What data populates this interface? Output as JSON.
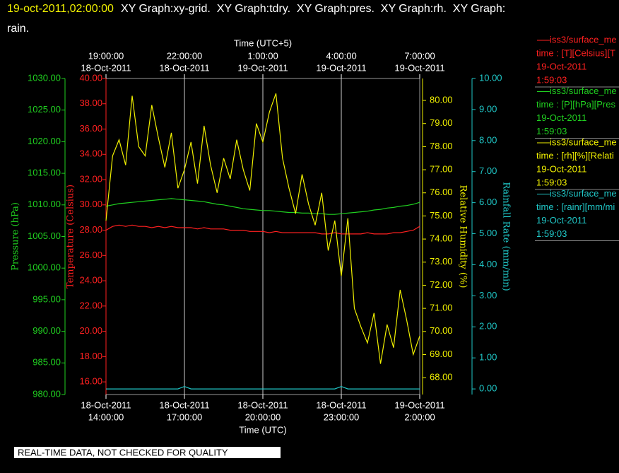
{
  "chart_data": {
    "type": "line",
    "title": {
      "time": "19-oct-2011,02:00:00",
      "line1": "XY Graph:xy-grid.  XY Graph:tdry.  XY Graph:pres.  XY Graph:rh.  XY Graph:",
      "line2": "rain."
    },
    "xlabel": "Time (UTC)",
    "x2label": "Time (UTC+5)",
    "xlim": [
      "2011-10-18T14:00",
      "2011-10-19T02:00"
    ],
    "xticks": [
      {
        "value": "2011-10-18T14:00",
        "label": [
          "18-Oct-2011",
          "14:00:00"
        ]
      },
      {
        "value": "2011-10-18T17:00",
        "label": [
          "18-Oct-2011",
          "17:00:00"
        ]
      },
      {
        "value": "2011-10-18T20:00",
        "label": [
          "18-Oct-2011",
          "20:00:00"
        ]
      },
      {
        "value": "2011-10-18T23:00",
        "label": [
          "18-Oct-2011",
          "23:00:00"
        ]
      },
      {
        "value": "2011-10-19T02:00",
        "label": [
          "19-Oct-2011",
          "2:00:00"
        ]
      }
    ],
    "x2ticks": [
      {
        "value": "2011-10-18T14:00",
        "label": [
          "19:00:00",
          "18-Oct-2011"
        ]
      },
      {
        "value": "2011-10-18T17:00",
        "label": [
          "22:00:00",
          "18-Oct-2011"
        ]
      },
      {
        "value": "2011-10-18T20:00",
        "label": [
          "1:00:00",
          "19-Oct-2011"
        ]
      },
      {
        "value": "2011-10-18T23:00",
        "label": [
          "4:00:00",
          "19-Oct-2011"
        ]
      },
      {
        "value": "2011-10-19T02:00",
        "label": [
          "7:00:00",
          "19-Oct-2011"
        ]
      }
    ],
    "grid": "x",
    "ylabel": "Temperature (Celsius)",
    "ycolor": "#ff2020",
    "ylim": [
      15,
      40
    ],
    "yticks": [
      {
        "value": 16,
        "label": "16.00"
      },
      {
        "value": 18,
        "label": "18.00"
      },
      {
        "value": 20,
        "label": "20.00"
      },
      {
        "value": 22,
        "label": "22.00"
      },
      {
        "value": 24,
        "label": "24.00"
      },
      {
        "value": 26,
        "label": "26.00"
      },
      {
        "value": 28,
        "label": "28.00"
      },
      {
        "value": 30,
        "label": "30.00"
      },
      {
        "value": 32,
        "label": "32.00"
      },
      {
        "value": 34,
        "label": "34.00"
      },
      {
        "value": 36,
        "label": "36.00"
      },
      {
        "value": 38,
        "label": "38.00"
      },
      {
        "value": 40,
        "label": "40.00"
      }
    ],
    "y2label": "Relative Humidity (%)",
    "y2color": "#f0f000",
    "y2lim": [
      67.27,
      80.95
    ],
    "y2ticks": [
      {
        "value": 68,
        "label": "68.00"
      },
      {
        "value": 69,
        "label": "69.00"
      },
      {
        "value": 70,
        "label": "70.00"
      },
      {
        "value": 71,
        "label": "71.00"
      },
      {
        "value": 72,
        "label": "72.00"
      },
      {
        "value": 73,
        "label": "73.00"
      },
      {
        "value": 74,
        "label": "74.00"
      },
      {
        "value": 75,
        "label": "75.00"
      },
      {
        "value": 76,
        "label": "76.00"
      },
      {
        "value": 77,
        "label": "77.00"
      },
      {
        "value": 78,
        "label": "78.00"
      },
      {
        "value": 79,
        "label": "79.00"
      },
      {
        "value": 80,
        "label": "80.00"
      }
    ],
    "y3label": "Pressure (hPa)",
    "y3color": "#20d020",
    "y3lim": [
      980,
      1030
    ],
    "y3ticks": [
      {
        "value": 980,
        "label": "980.00"
      },
      {
        "value": 985,
        "label": "985.00"
      },
      {
        "value": 990,
        "label": "990.00"
      },
      {
        "value": 995,
        "label": "995.00"
      },
      {
        "value": 1000,
        "label": "1000.00"
      },
      {
        "value": 1005,
        "label": "1005.00"
      },
      {
        "value": 1010,
        "label": "1010.00"
      },
      {
        "value": 1015,
        "label": "1015.00"
      },
      {
        "value": 1020,
        "label": "1020.00"
      },
      {
        "value": 1025,
        "label": "1025.00"
      },
      {
        "value": 1030,
        "label": "1030.00"
      }
    ],
    "y4label": "Rainfall Rate (mm/min)",
    "y4color": "#20c8c8",
    "y4lim": [
      -0.18,
      10
    ],
    "y4ticks": [
      {
        "value": 0,
        "label": "0.00"
      },
      {
        "value": 1,
        "label": "1.00"
      },
      {
        "value": 2,
        "label": "2.00"
      },
      {
        "value": 3,
        "label": "3.00"
      },
      {
        "value": 4,
        "label": "4.00"
      },
      {
        "value": 5,
        "label": "5.00"
      },
      {
        "value": 6,
        "label": "6.00"
      },
      {
        "value": 7,
        "label": "7.00"
      },
      {
        "value": 8,
        "label": "8.00"
      },
      {
        "value": 9,
        "label": "9.00"
      },
      {
        "value": 10,
        "label": "10.00"
      }
    ],
    "x": [
      "2011-10-18T14:00",
      "2011-10-18T14:15",
      "2011-10-18T14:30",
      "2011-10-18T14:45",
      "2011-10-18T15:00",
      "2011-10-18T15:15",
      "2011-10-18T15:30",
      "2011-10-18T15:45",
      "2011-10-18T16:00",
      "2011-10-18T16:15",
      "2011-10-18T16:30",
      "2011-10-18T16:45",
      "2011-10-18T17:00",
      "2011-10-18T17:15",
      "2011-10-18T17:30",
      "2011-10-18T17:45",
      "2011-10-18T18:00",
      "2011-10-18T18:15",
      "2011-10-18T18:30",
      "2011-10-18T18:45",
      "2011-10-18T19:00",
      "2011-10-18T19:15",
      "2011-10-18T19:30",
      "2011-10-18T19:45",
      "2011-10-18T20:00",
      "2011-10-18T20:15",
      "2011-10-18T20:30",
      "2011-10-18T20:45",
      "2011-10-18T21:00",
      "2011-10-18T21:15",
      "2011-10-18T21:30",
      "2011-10-18T21:45",
      "2011-10-18T22:00",
      "2011-10-18T22:15",
      "2011-10-18T22:30",
      "2011-10-18T22:45",
      "2011-10-18T23:00",
      "2011-10-18T23:15",
      "2011-10-18T23:30",
      "2011-10-18T23:45",
      "2011-10-19T00:00",
      "2011-10-19T00:15",
      "2011-10-19T00:30",
      "2011-10-19T00:45",
      "2011-10-19T01:00",
      "2011-10-19T01:15",
      "2011-10-19T01:30",
      "2011-10-19T01:45",
      "2011-10-19T02:00"
    ],
    "series": [
      {
        "axis": "y3",
        "color": "#20d020",
        "values": [
          1009.8,
          1010.0,
          1010.2,
          1010.3,
          1010.4,
          1010.5,
          1010.6,
          1010.7,
          1010.8,
          1010.9,
          1011.0,
          1010.9,
          1010.8,
          1010.7,
          1010.6,
          1010.5,
          1010.3,
          1010.1,
          1010.0,
          1009.8,
          1009.6,
          1009.4,
          1009.3,
          1009.2,
          1009.1,
          1009.1,
          1009.0,
          1008.9,
          1008.8,
          1008.8,
          1008.7,
          1008.7,
          1008.6,
          1008.6,
          1008.5,
          1008.5,
          1008.6,
          1008.7,
          1008.8,
          1008.9,
          1009.0,
          1009.2,
          1009.3,
          1009.5,
          1009.6,
          1009.8,
          1009.9,
          1010.1,
          1010.4
        ]
      },
      {
        "axis": "y",
        "color": "#ff2020",
        "values": [
          28.0,
          28.3,
          28.4,
          28.3,
          28.4,
          28.3,
          28.3,
          28.2,
          28.3,
          28.2,
          28.3,
          28.2,
          28.2,
          28.2,
          28.1,
          28.2,
          28.1,
          28.1,
          28.1,
          28.0,
          28.0,
          28.0,
          27.9,
          27.9,
          27.9,
          27.8,
          27.9,
          27.8,
          27.8,
          27.8,
          27.8,
          27.8,
          27.8,
          27.7,
          27.7,
          27.8,
          27.7,
          27.7,
          27.7,
          27.7,
          27.8,
          27.7,
          27.7,
          27.7,
          27.8,
          27.8,
          27.9,
          28.0,
          28.3
        ]
      },
      {
        "axis": "y2",
        "color": "#f0f000",
        "values": [
          74.8,
          77.6,
          78.3,
          77.2,
          80.2,
          78.0,
          77.6,
          79.8,
          78.4,
          77.1,
          78.6,
          76.2,
          77.0,
          78.2,
          76.4,
          78.9,
          77.2,
          76.0,
          77.5,
          76.6,
          78.3,
          77.0,
          76.1,
          79.0,
          78.2,
          79.5,
          80.3,
          77.5,
          76.2,
          75.1,
          76.8,
          75.5,
          74.6,
          76.0,
          73.5,
          74.8,
          72.4,
          74.9,
          71.0,
          70.2,
          69.5,
          70.8,
          68.6,
          70.3,
          69.3,
          71.8,
          70.5,
          69.0,
          69.8
        ]
      },
      {
        "axis": "y4",
        "color": "#20c8c8",
        "values": [
          0,
          0,
          0,
          0,
          0,
          0,
          0,
          0,
          0,
          0,
          0,
          0,
          0.08,
          0,
          0,
          0,
          0,
          0,
          0,
          0,
          0,
          0,
          0,
          0,
          0,
          0,
          0,
          0,
          0,
          0,
          0,
          0,
          0,
          0,
          0,
          0,
          0.08,
          0,
          0,
          0,
          0,
          0,
          0,
          0,
          0,
          0,
          0,
          0,
          0
        ]
      }
    ],
    "legend": [
      {
        "name": "iss3/surface_me",
        "units": "time : [T][Celsius][T",
        "date": "19-Oct-2011",
        "time": "1:59:03",
        "color": "#ff2020"
      },
      {
        "name": "iss3/surface_me",
        "units": "time : [P][hPa][Pres",
        "date": "19-Oct-2011",
        "time": "1:59:03",
        "color": "#20d020"
      },
      {
        "name": "iss3/surface_me",
        "units": "time : [rh][%][Relati",
        "date": "19-Oct-2011",
        "time": "1:59:03",
        "color": "#f0f000"
      },
      {
        "name": "iss3/surface_me",
        "units": "time : [rainr][mm/mi",
        "date": "19-Oct-2011",
        "time": "1:59:03",
        "color": "#20c8c8"
      }
    ],
    "note": "REAL-TIME DATA, NOT CHECKED FOR QUALITY"
  }
}
